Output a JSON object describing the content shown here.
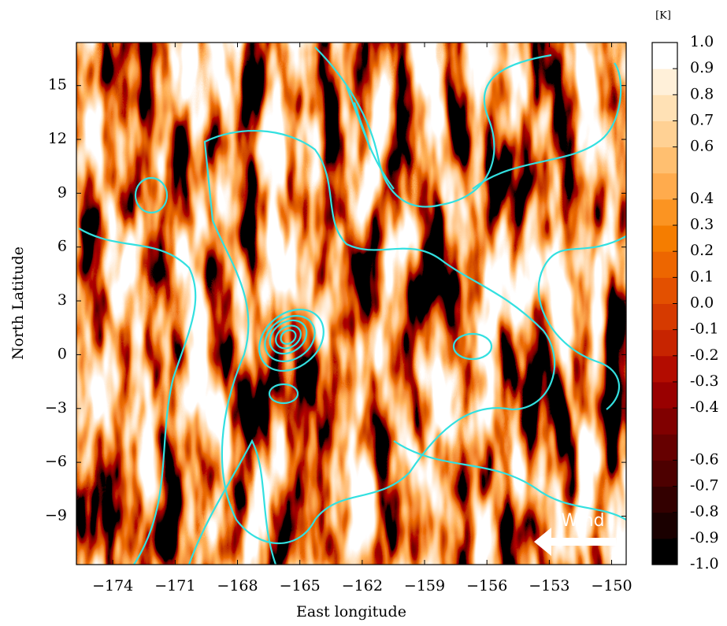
{
  "chart_data": {
    "type": "heatmap",
    "xlabel": "East longitude",
    "ylabel": "North Latitude",
    "xlim": [
      -175.75,
      -149.3
    ],
    "ylim": [
      -11.7,
      17.4
    ],
    "xticks": [
      {
        "value": -174,
        "label": "−174"
      },
      {
        "value": -171,
        "label": "−171"
      },
      {
        "value": -168,
        "label": "−168"
      },
      {
        "value": -165,
        "label": "−165"
      },
      {
        "value": -162,
        "label": "−162"
      },
      {
        "value": -159,
        "label": "−159"
      },
      {
        "value": -156,
        "label": "−156"
      },
      {
        "value": -153,
        "label": "−153"
      },
      {
        "value": -150,
        "label": "−150"
      }
    ],
    "yticks": [
      {
        "value": -9,
        "label": "−9"
      },
      {
        "value": -6,
        "label": "−6"
      },
      {
        "value": -3,
        "label": "−3"
      },
      0,
      3,
      6,
      9,
      12,
      15
    ],
    "contour_color": "#33e0e0",
    "annotation": "Wind",
    "colorbar": {
      "label": "[K]",
      "lim": [
        -1,
        1
      ],
      "ticks": [
        {
          "value": 1,
          "label": "1.0"
        },
        0.9,
        0.8,
        0.7,
        0.6,
        0.4,
        0.3,
        0.2,
        0.1,
        {
          "value": 0,
          "label": "0.0"
        },
        -0.1,
        -0.2,
        -0.3,
        -0.4,
        -0.6,
        -0.7,
        -0.8,
        -0.9,
        {
          "value": -1,
          "label": "-1.0"
        }
      ],
      "colors": [
        "#000000",
        "#1a0000",
        "#330000",
        "#4d0000",
        "#660000",
        "#800000",
        "#990000",
        "#b30c00",
        "#c72400",
        "#d63a00",
        "#e35000",
        "#ed6600",
        "#f57d00",
        "#fb9422",
        "#ffab4d",
        "#ffbf70",
        "#ffd194",
        "#ffe1b5",
        "#fff0d9",
        "#ffffff"
      ]
    }
  }
}
